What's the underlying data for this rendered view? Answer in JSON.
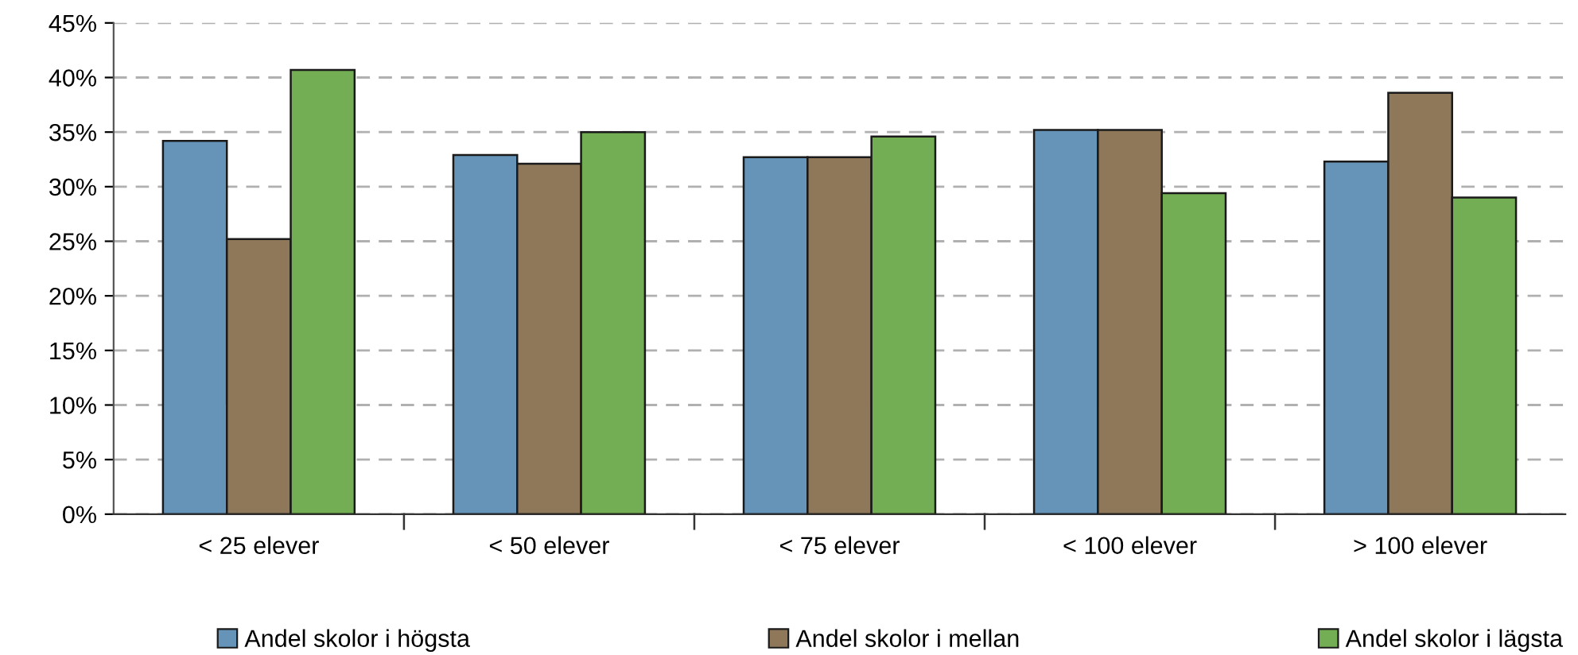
{
  "chart_data": {
    "type": "bar",
    "categories": [
      "< 25 elever",
      "< 50 elever",
      "< 75 elever",
      "< 100 elever",
      "> 100 elever"
    ],
    "series": [
      {
        "name": "Andel skolor i högsta",
        "color": "#6694b8",
        "values": [
          34.2,
          32.9,
          32.7,
          35.2,
          32.3
        ]
      },
      {
        "name": "Andel skolor i mellan",
        "color": "#8f785a",
        "values": [
          25.2,
          32.1,
          32.7,
          35.2,
          38.6
        ]
      },
      {
        "name": "Andel skolor i lägsta",
        "color": "#74ae54",
        "values": [
          40.7,
          35.0,
          34.6,
          29.4,
          29.0
        ]
      }
    ],
    "ylim": [
      0,
      45
    ],
    "yticks": [
      {
        "value": 0,
        "label": "0%"
      },
      {
        "value": 5,
        "label": "5%"
      },
      {
        "value": 10,
        "label": "10%"
      },
      {
        "value": 15,
        "label": "15%"
      },
      {
        "value": 20,
        "label": "20%"
      },
      {
        "value": 25,
        "label": "25%"
      },
      {
        "value": 30,
        "label": "30%"
      },
      {
        "value": 35,
        "label": "35%"
      },
      {
        "value": 40,
        "label": "40%"
      },
      {
        "value": 45,
        "label": "45%"
      }
    ],
    "grid": "y",
    "legend": "bottom"
  }
}
